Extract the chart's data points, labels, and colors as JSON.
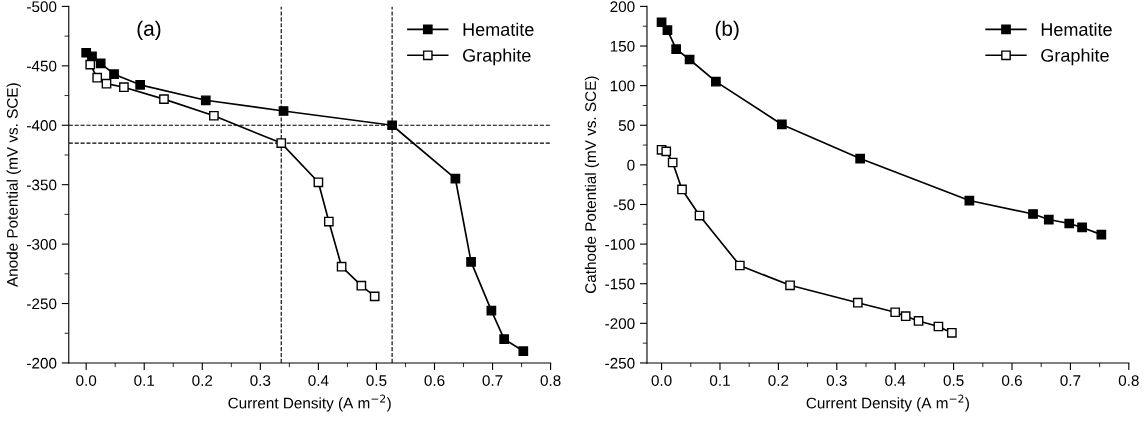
{
  "chart_data": [
    {
      "type": "line",
      "title": "(a)",
      "xlabel": "Current Density (A m$^{−2}$)",
      "ylabel": "Anode Potential (mV vs. SCE)",
      "xlim": [
        -0.03,
        0.8
      ],
      "xticks": [
        {
          "value": 0,
          "label": "0.0"
        },
        0.1,
        0.2,
        0.3,
        0.4,
        0.5,
        0.6,
        0.7,
        0.8
      ],
      "ylim": [
        -200,
        -500
      ],
      "yticks": [
        -500,
        -450,
        -400,
        -350,
        -300,
        -250,
        -200
      ],
      "marker": "square",
      "legend": "top right",
      "grid": false,
      "series": [
        {
          "name": "Hematite",
          "color": "#000000",
          "x": [
            0.0,
            0.01,
            0.025,
            0.048,
            0.093,
            0.206,
            0.34,
            0.527,
            0.636,
            0.663,
            0.698,
            0.72,
            0.753
          ],
          "values": [
            -461,
            -458,
            -452,
            -443,
            -434,
            -421,
            -412,
            -400,
            -355,
            -285,
            -244,
            -220,
            -210
          ]
        },
        {
          "name": "Graphite",
          "color": "#ffffff",
          "x": [
            0.007,
            0.019,
            0.035,
            0.065,
            0.134,
            0.22,
            0.336,
            0.4,
            0.418,
            0.44,
            0.474,
            0.497
          ],
          "values": [
            -451,
            -440,
            -435,
            -432,
            -422,
            -408,
            -385,
            -352,
            -319,
            -281,
            -265,
            -256
          ]
        }
      ],
      "ref_lines": [
        {
          "axis": "y",
          "value": -400,
          "line_style": "dashed",
          "color": "#000000"
        },
        {
          "axis": "y",
          "value": -385,
          "line_style": "dashed",
          "color": "#000000"
        },
        {
          "axis": "x",
          "value": 0.336,
          "line_style": "dashed",
          "color": "#000000"
        },
        {
          "axis": "x",
          "value": 0.527,
          "line_style": "dashed",
          "color": "#000000"
        }
      ]
    },
    {
      "type": "line",
      "title": "(b)",
      "xlabel": "Current Density (A m$^{−2}$)",
      "ylabel": "Cathode Potential (mV vs. SCE)",
      "xlim": [
        -0.025,
        0.8
      ],
      "xticks": [
        {
          "value": 0,
          "label": "0.0"
        },
        0.1,
        0.2,
        0.3,
        0.4,
        0.5,
        0.6,
        0.7,
        0.8
      ],
      "ylim": [
        -250,
        200
      ],
      "yticks": [
        -250,
        -200,
        -150,
        -100,
        -50,
        0,
        50,
        100,
        150,
        200
      ],
      "marker": "square",
      "legend": "top right",
      "grid": false,
      "series": [
        {
          "name": "Hematite",
          "color": "#000000",
          "x": [
            0.0,
            0.01,
            0.025,
            0.048,
            0.093,
            0.206,
            0.34,
            0.527,
            0.636,
            0.663,
            0.698,
            0.72,
            0.753
          ],
          "values": [
            180,
            170,
            146,
            133,
            105,
            51,
            8,
            -45,
            -62,
            -69,
            -74,
            -79,
            -88
          ]
        },
        {
          "name": "Graphite",
          "color": "#ffffff",
          "x": [
            0.0,
            0.008,
            0.019,
            0.035,
            0.065,
            0.134,
            0.22,
            0.336,
            0.4,
            0.418,
            0.44,
            0.474,
            0.497
          ],
          "values": [
            19,
            17,
            3,
            -31,
            -64,
            -127,
            -152,
            -174,
            -186,
            -191,
            -197,
            -204,
            -212
          ]
        }
      ]
    }
  ]
}
